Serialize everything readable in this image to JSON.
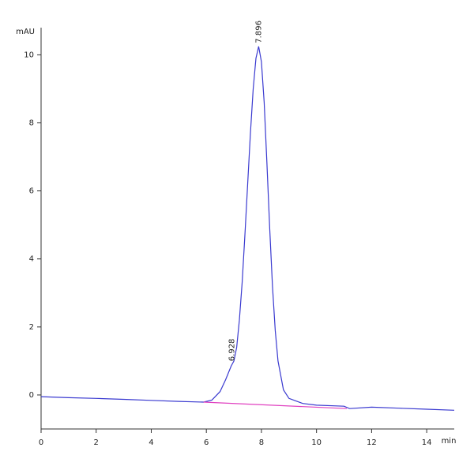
{
  "chart_data": {
    "type": "line",
    "y_label": "mAU",
    "x_label": "min",
    "xlim": [
      0,
      15
    ],
    "ylim": [
      -1,
      10.8
    ],
    "xticks": [
      0,
      2,
      4,
      6,
      8,
      10,
      12,
      14
    ],
    "yticks": [
      0,
      2,
      4,
      6,
      8,
      10
    ],
    "series": [
      {
        "color": "#3a3ad0",
        "x": [
          0,
          1,
          2,
          3,
          4,
          5,
          5.9,
          6.2,
          6.5,
          6.7,
          6.9,
          7.0,
          7.1,
          7.2,
          7.3,
          7.4,
          7.5,
          7.6,
          7.7,
          7.8,
          7.9,
          8.0,
          8.1,
          8.2,
          8.3,
          8.4,
          8.5,
          8.6,
          8.8,
          9.0,
          9.5,
          10,
          11,
          11.2,
          12,
          13,
          14,
          15
        ],
        "values": [
          -0.05,
          -0.08,
          -0.1,
          -0.13,
          -0.16,
          -0.19,
          -0.21,
          -0.15,
          0.1,
          0.45,
          0.85,
          1.0,
          1.4,
          2.2,
          3.3,
          4.7,
          6.2,
          7.7,
          9.0,
          9.9,
          10.25,
          9.8,
          8.6,
          6.8,
          4.9,
          3.2,
          1.9,
          1.0,
          0.15,
          -0.1,
          -0.25,
          -0.3,
          -0.33,
          -0.4,
          -0.36,
          -0.39,
          -0.42,
          -0.45
        ]
      },
      {
        "color": "#e040c0",
        "x": [
          5.9,
          11.1
        ],
        "values": [
          -0.21,
          -0.4
        ]
      }
    ],
    "peaks": [
      {
        "x": 6.928,
        "y": 0.9
      },
      {
        "x": 7.896,
        "y": 10.25
      }
    ]
  }
}
